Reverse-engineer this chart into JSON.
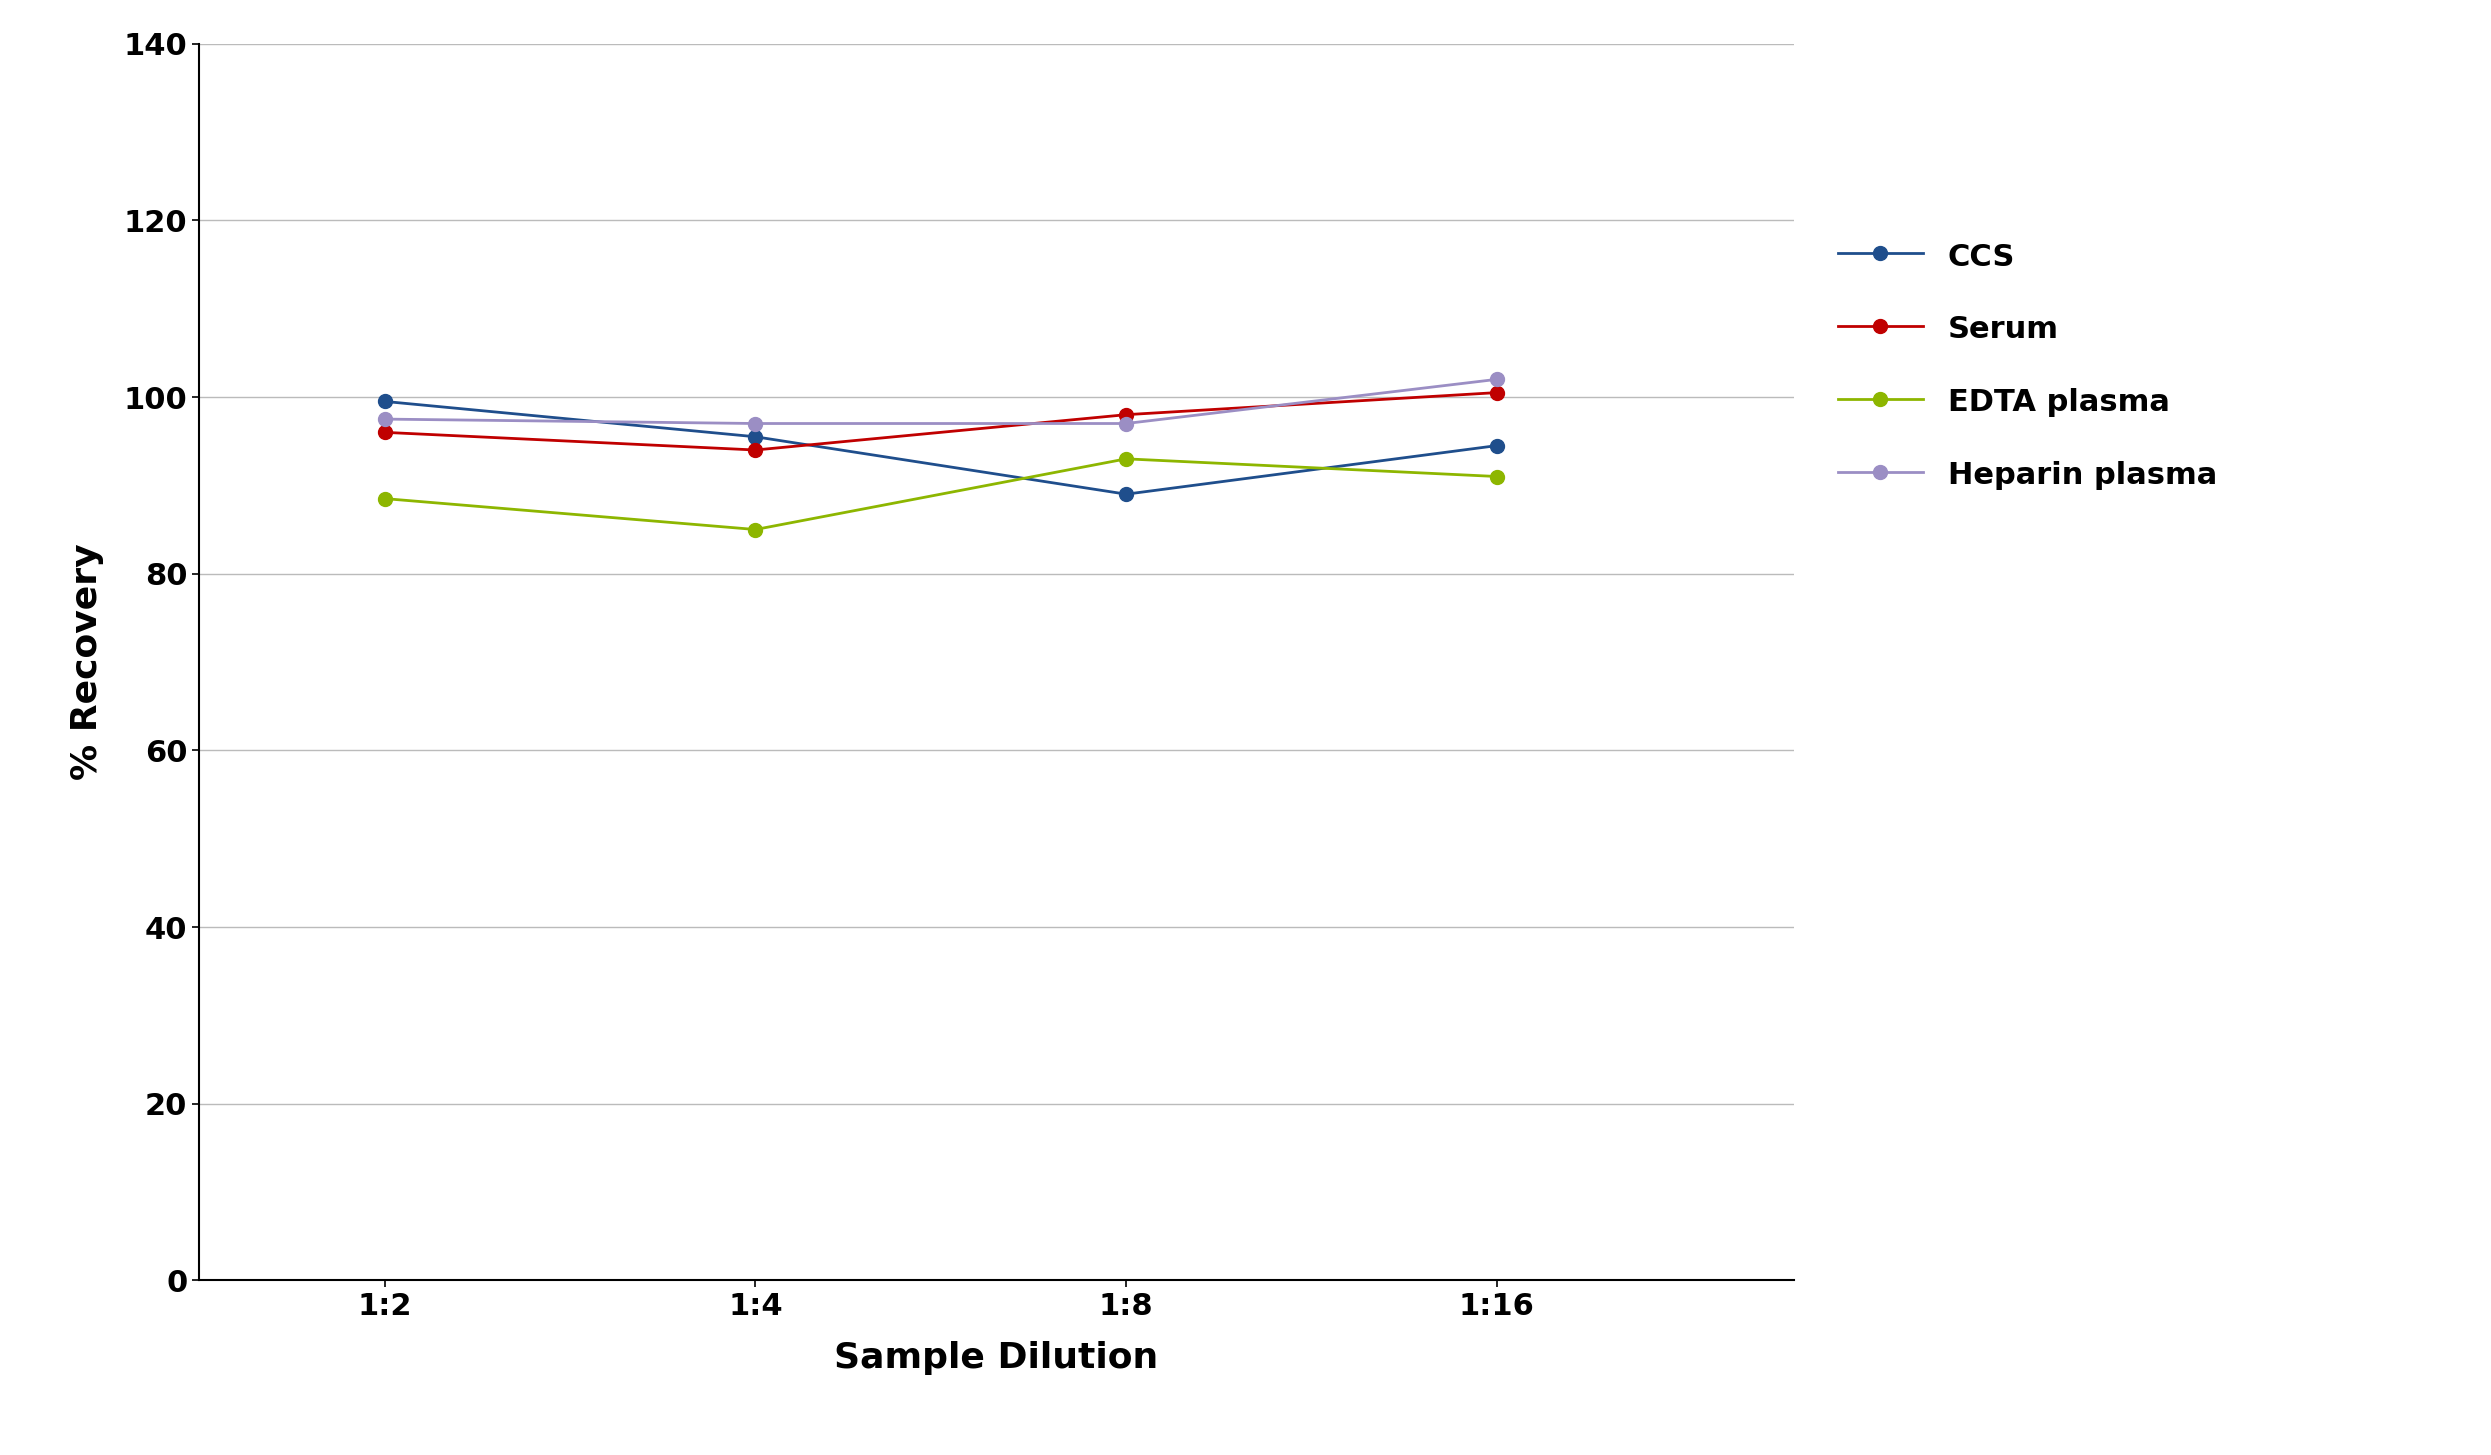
{
  "x_labels": [
    "1:2",
    "1:4",
    "1:8",
    "1:16"
  ],
  "x_positions": [
    0,
    1,
    2,
    3
  ],
  "series": [
    {
      "name": "CCS",
      "color": "#1F4E8C",
      "values": [
        99.5,
        95.5,
        89.0,
        94.5
      ]
    },
    {
      "name": "Serum",
      "color": "#C00000",
      "values": [
        96.0,
        94.0,
        98.0,
        100.5
      ]
    },
    {
      "name": "EDTA plasma",
      "color": "#8DB600",
      "values": [
        88.5,
        85.0,
        93.0,
        91.0
      ]
    },
    {
      "name": "Heparin plasma",
      "color": "#9B8EC4",
      "values": [
        97.5,
        97.0,
        97.0,
        102.0
      ]
    }
  ],
  "xlabel": "Sample Dilution",
  "ylabel": "% Recovery",
  "ylim": [
    0,
    140
  ],
  "yticks": [
    0,
    20,
    40,
    60,
    80,
    100,
    120,
    140
  ],
  "grid_color": "#BBBBBB",
  "background_color": "#FFFFFF",
  "marker_size": 10,
  "line_width": 2.0,
  "xlabel_fontsize": 26,
  "ylabel_fontsize": 26,
  "tick_fontsize": 22,
  "legend_fontsize": 22
}
